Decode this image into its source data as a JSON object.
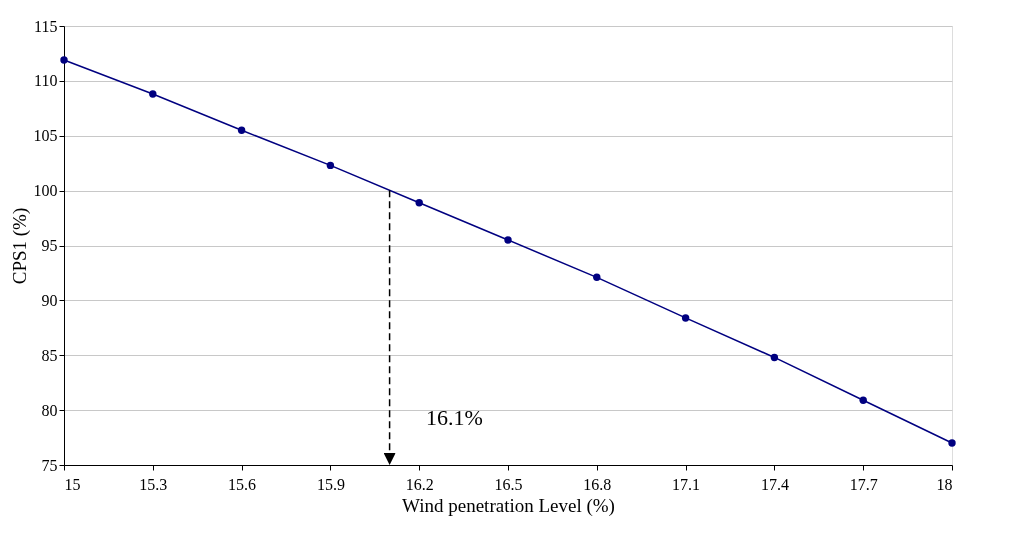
{
  "chart_data": {
    "type": "line",
    "xlabel": "Wind penetration Level (%)",
    "ylabel": "CPS1 (%)",
    "x": [
      15,
      15.3,
      15.6,
      15.9,
      16.2,
      16.5,
      16.8,
      17.1,
      17.4,
      17.7,
      18
    ],
    "series": [
      {
        "color": "#000080",
        "values": [
          111.9,
          108.8,
          105.5,
          102.3,
          98.9,
          95.5,
          92.1,
          88.4,
          84.8,
          80.9,
          77.0
        ]
      }
    ],
    "xlim": [
      15,
      18
    ],
    "xticks": [
      15,
      15.3,
      15.6,
      15.9,
      16.2,
      16.5,
      16.8,
      17.1,
      17.4,
      17.7,
      18
    ],
    "ylim": [
      75,
      115
    ],
    "yticks": [
      75,
      80,
      85,
      90,
      95,
      100,
      105,
      110,
      115
    ],
    "grid": "y",
    "marker": "circle",
    "line_style": "solid",
    "ref_lines": [
      {
        "axis": "x",
        "value": 16.1,
        "line_style": "dashed",
        "color": "#000000"
      }
    ],
    "annotations": [
      "16.1%"
    ]
  }
}
